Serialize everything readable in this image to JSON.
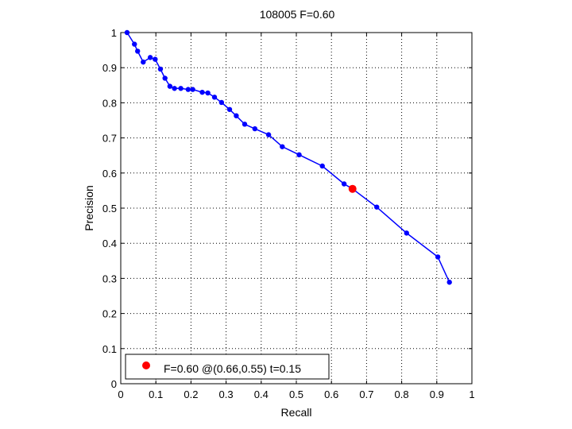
{
  "chart_data": {
    "type": "line",
    "title": "108005 F=0.60",
    "xlabel": "Recall",
    "ylabel": "Precision",
    "xlim": [
      0,
      1
    ],
    "ylim": [
      0,
      1
    ],
    "grid": true,
    "legend_placement": "bottom-left",
    "xticks": [
      0,
      0.1,
      0.2,
      0.3,
      0.4,
      0.5,
      0.6,
      0.7,
      0.8,
      0.9,
      1
    ],
    "yticks": [
      0,
      0.1,
      0.2,
      0.3,
      0.4,
      0.5,
      0.6,
      0.7,
      0.8,
      0.9,
      1
    ],
    "xtick_labels": [
      "0",
      "0.1",
      "0.2",
      "0.3",
      "0.4",
      "0.5",
      "0.6",
      "0.7",
      "0.8",
      "0.9",
      "1"
    ],
    "ytick_labels": [
      "0",
      "0.1",
      "0.2",
      "0.3",
      "0.4",
      "0.5",
      "0.6",
      "0.7",
      "0.8",
      "0.9",
      "1"
    ],
    "series": [
      {
        "color": "#0000ff",
        "x": [
          0.018,
          0.039,
          0.048,
          0.064,
          0.084,
          0.098,
          0.113,
          0.126,
          0.14,
          0.153,
          0.171,
          0.192,
          0.205,
          0.232,
          0.248,
          0.267,
          0.287,
          0.31,
          0.329,
          0.353,
          0.382,
          0.421,
          0.46,
          0.508,
          0.574,
          0.636,
          0.66,
          0.729,
          0.814,
          0.903,
          0.936
        ],
        "y": [
          1.0,
          0.967,
          0.947,
          0.916,
          0.929,
          0.924,
          0.896,
          0.87,
          0.847,
          0.841,
          0.841,
          0.838,
          0.838,
          0.83,
          0.828,
          0.816,
          0.801,
          0.781,
          0.763,
          0.739,
          0.726,
          0.709,
          0.675,
          0.652,
          0.62,
          0.569,
          0.555,
          0.503,
          0.429,
          0.361,
          0.289
        ]
      }
    ],
    "highlight_point": {
      "x": 0.66,
      "y": 0.555,
      "color": "#ff0000"
    },
    "legend": {
      "label": "F=0.60 @(0.66,0.55) t=0.15",
      "color": "#ff0000"
    }
  }
}
